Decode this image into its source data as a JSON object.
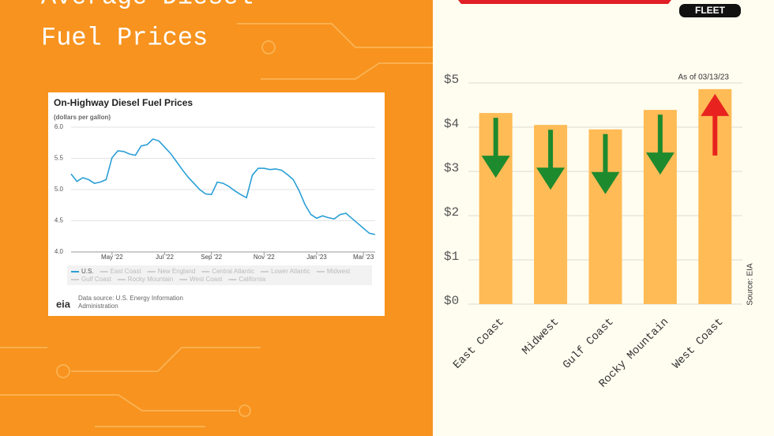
{
  "page": {
    "title_lines": [
      "Average Diesel",
      "Fuel Prices"
    ],
    "logo_badge": "FLEET"
  },
  "chart_data": [
    {
      "type": "line",
      "title": "On-Highway Diesel Fuel Prices",
      "subtitle": "(dollars per gallon)",
      "categories": [
        null,
        null,
        null,
        null,
        null,
        null,
        null,
        "May '22",
        null,
        null,
        null,
        null,
        null,
        null,
        null,
        null,
        "Jul '22",
        null,
        null,
        null,
        null,
        null,
        null,
        null,
        "Sep '22",
        null,
        null,
        null,
        null,
        null,
        null,
        null,
        null,
        "Nov '22",
        null,
        null,
        null,
        null,
        null,
        null,
        null,
        null,
        "Jan '23",
        null,
        null,
        null,
        null,
        null,
        null,
        null,
        "Mar '23",
        null,
        null
      ],
      "series": [
        {
          "name": "U.S.",
          "color": "#2a9fd6",
          "values": [
            5.25,
            5.13,
            5.19,
            5.16,
            5.1,
            5.12,
            5.16,
            5.51,
            5.62,
            5.61,
            5.57,
            5.55,
            5.7,
            5.72,
            5.81,
            5.78,
            5.68,
            5.58,
            5.45,
            5.32,
            5.2,
            5.1,
            5.0,
            4.93,
            4.92,
            5.12,
            5.1,
            5.05,
            4.98,
            4.92,
            4.87,
            5.23,
            5.34,
            5.34,
            5.32,
            5.33,
            5.31,
            5.24,
            5.16,
            4.98,
            4.76,
            4.6,
            4.54,
            4.58,
            4.55,
            4.53,
            4.6,
            4.62,
            4.54,
            4.46,
            4.38,
            4.3,
            4.28
          ]
        }
      ],
      "hidden_series": [
        "East Coast",
        "New England",
        "Central Atlantic",
        "Lower Atlantic",
        "Midwest",
        "Gulf Coast",
        "Rocky Mountain",
        "West Coast",
        "California"
      ],
      "hidden_color": "#cfcfcf",
      "ylim": [
        4,
        6
      ],
      "yticks": [
        {
          "value": 4,
          "label": "4.0"
        },
        4.5,
        {
          "value": 5,
          "label": "5.0"
        },
        5.5,
        {
          "value": 6,
          "label": "6.0"
        }
      ],
      "grid": true,
      "source": "Data source: U.S. Energy Information Administration",
      "source_logo": "eia"
    },
    {
      "type": "bar",
      "categories": [
        "East Coast",
        "Midwest",
        "Gulf Coast",
        "Rocky Mountain",
        "West Coast"
      ],
      "values": [
        4.32,
        4.05,
        3.95,
        4.39,
        4.86
      ],
      "color": "#ffbb55",
      "directions": [
        "down",
        "down",
        "down",
        "down",
        "up"
      ],
      "down_color": "#1e8a2e",
      "up_color": "#e8231f",
      "ylim": [
        0,
        5
      ],
      "yticks": [
        {
          "value": 0,
          "label": "$0"
        },
        {
          "value": 1,
          "label": "$1"
        },
        {
          "value": 2,
          "label": "$2"
        },
        {
          "value": 3,
          "label": "$3"
        },
        {
          "value": 4,
          "label": "$4"
        },
        {
          "value": 5,
          "label": "$5"
        }
      ],
      "grid": true,
      "annotation": "As of 03/13/23",
      "source": "Source: EIA"
    }
  ]
}
